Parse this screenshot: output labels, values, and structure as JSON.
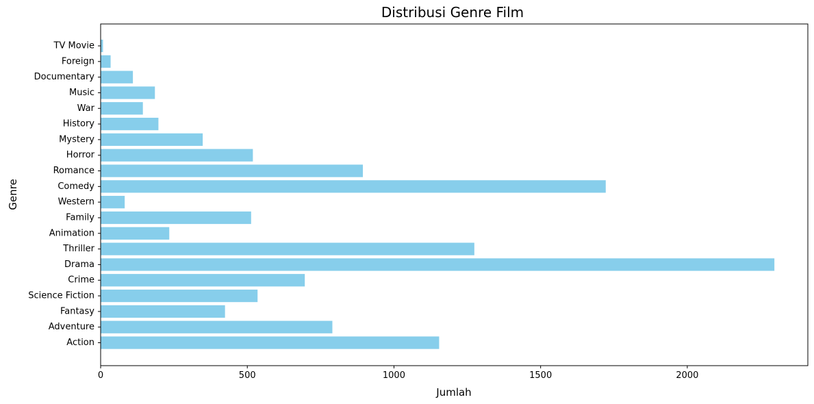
{
  "chart_data": {
    "type": "bar",
    "orientation": "horizontal",
    "title": "Distribusi Genre Film",
    "xlabel": "Jumlah",
    "ylabel": "Genre",
    "categories": [
      "Action",
      "Adventure",
      "Fantasy",
      "Science Fiction",
      "Crime",
      "Drama",
      "Thriller",
      "Animation",
      "Family",
      "Western",
      "Comedy",
      "Romance",
      "Horror",
      "Mystery",
      "History",
      "War",
      "Music",
      "Documentary",
      "Foreign",
      "TV Movie"
    ],
    "values": [
      1154,
      790,
      424,
      535,
      696,
      2297,
      1274,
      234,
      513,
      82,
      1722,
      894,
      519,
      348,
      197,
      144,
      185,
      110,
      34,
      8
    ],
    "xlim": [
      0,
      2411
    ],
    "xticks": [
      0,
      500,
      1000,
      1500,
      2000
    ],
    "grid": false,
    "bar_color": "#87CEEB"
  }
}
